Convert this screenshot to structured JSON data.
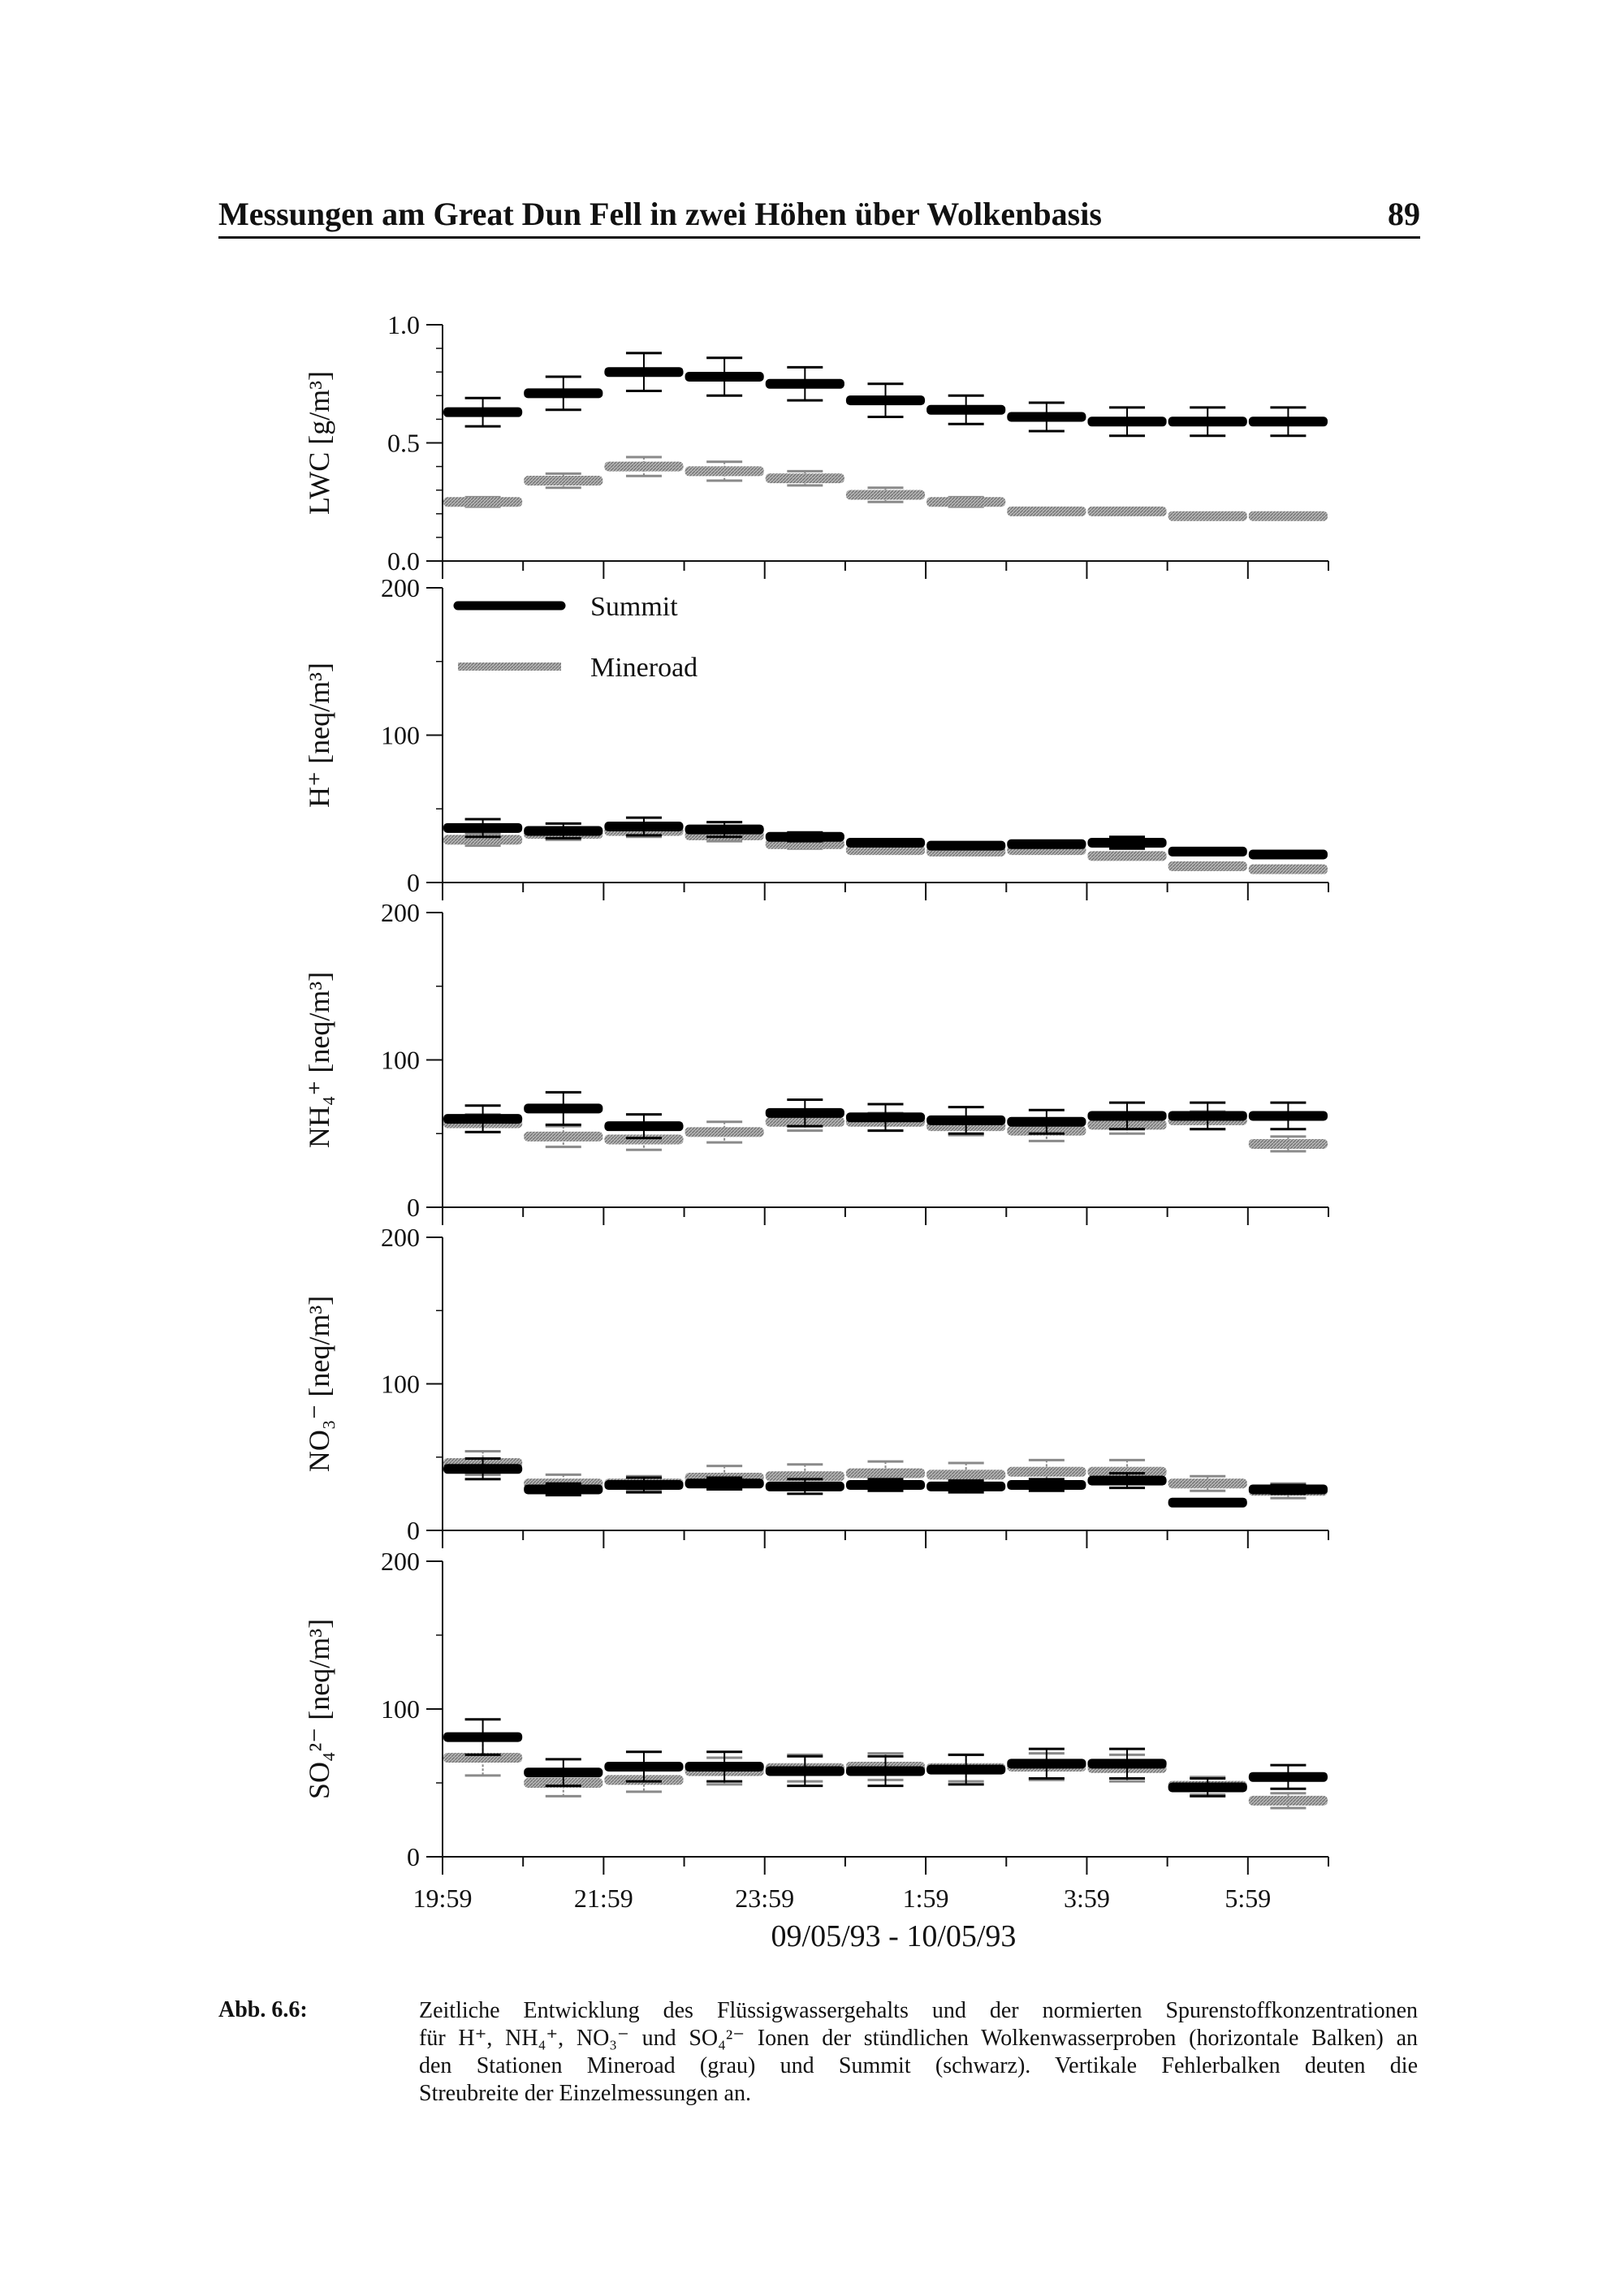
{
  "header": {
    "title": "Messungen am Great Dun Fell in zwei Höhen über Wolkenbasis",
    "page_number": "89"
  },
  "legend": [
    {
      "name": "Summit",
      "color": "#000000"
    },
    {
      "name": "Mineroad",
      "color": "#9a9a9a"
    }
  ],
  "x_axis": {
    "tick_labels": [
      "19:59",
      "21:59",
      "23:59",
      "1:59",
      "3:59",
      "5:59"
    ],
    "tick_hours": [
      0,
      2,
      4,
      6,
      8,
      10
    ],
    "range_hours": [
      0,
      11
    ],
    "label": "09/05/93 - 10/05/93"
  },
  "chart_data": [
    {
      "type": "bar",
      "ylabel": "LWC [g/m³]",
      "ylim": [
        0,
        1.0
      ],
      "yticks": [
        "0.0",
        "0.5",
        "1.0"
      ],
      "ytick_values": [
        0,
        0.5,
        1.0
      ],
      "minor_step": 0.1,
      "series": [
        {
          "name": "Summit",
          "values": [
            0.63,
            0.71,
            0.8,
            0.78,
            0.75,
            0.68,
            0.64,
            0.61,
            0.59,
            0.59,
            0.59
          ],
          "err": [
            0.06,
            0.07,
            0.08,
            0.08,
            0.07,
            0.07,
            0.06,
            0.06,
            0.06,
            0.06,
            0.06
          ]
        },
        {
          "name": "Mineroad",
          "values": [
            0.25,
            0.34,
            0.4,
            0.38,
            0.35,
            0.28,
            0.25,
            0.21,
            0.21,
            0.19,
            0.19
          ],
          "err": [
            0.02,
            0.03,
            0.04,
            0.04,
            0.03,
            0.03,
            0.02,
            0.01,
            0.01,
            0.01,
            0.01
          ]
        }
      ]
    },
    {
      "type": "bar",
      "ylabel": "H⁺ [neq/m³]",
      "ylim": [
        0,
        200
      ],
      "yticks": [
        "0",
        "100",
        "200"
      ],
      "ytick_values": [
        0,
        100,
        200
      ],
      "minor_step": 50,
      "series": [
        {
          "name": "Summit",
          "values": [
            37,
            35,
            38,
            36,
            31,
            27,
            25,
            26,
            27,
            21,
            19
          ],
          "err": [
            6,
            5,
            6,
            5,
            3,
            2,
            1,
            1,
            4,
            1,
            1
          ]
        },
        {
          "name": "Mineroad",
          "values": [
            29,
            33,
            35,
            32,
            26,
            22,
            21,
            22,
            18,
            11,
            9
          ],
          "err": [
            4,
            4,
            4,
            4,
            3,
            2,
            2,
            2,
            2,
            1,
            1
          ]
        }
      ]
    },
    {
      "type": "bar",
      "ylabel": "NH₄⁺ [neq/m³]",
      "ylim": [
        0,
        200
      ],
      "yticks": [
        "0",
        "100",
        "200"
      ],
      "ytick_values": [
        0,
        100,
        200
      ],
      "minor_step": 50,
      "series": [
        {
          "name": "Summit",
          "values": [
            60,
            67,
            55,
            null,
            64,
            61,
            59,
            58,
            62,
            62,
            62
          ],
          "err": [
            9,
            11,
            8,
            0,
            9,
            9,
            9,
            8,
            9,
            9,
            9
          ]
        },
        {
          "name": "Mineroad",
          "values": [
            57,
            48,
            46,
            51,
            58,
            58,
            55,
            52,
            56,
            59,
            43
          ],
          "err": [
            6,
            7,
            7,
            7,
            6,
            6,
            6,
            7,
            6,
            6,
            5
          ]
        }
      ]
    },
    {
      "type": "bar",
      "ylabel": "NO₃⁻ [neq/m³]",
      "ylim": [
        0,
        200
      ],
      "yticks": [
        "0",
        "100",
        "200"
      ],
      "ytick_values": [
        0,
        100,
        200
      ],
      "minor_step": 50,
      "series": [
        {
          "name": "Summit",
          "values": [
            42,
            28,
            31,
            32,
            30,
            31,
            30,
            31,
            34,
            19,
            28
          ],
          "err": [
            7,
            4,
            5,
            4,
            5,
            4,
            4,
            4,
            5,
            0,
            3
          ]
        },
        {
          "name": "Mineroad",
          "values": [
            46,
            32,
            32,
            36,
            37,
            39,
            38,
            40,
            40,
            32,
            27
          ],
          "err": [
            8,
            6,
            5,
            8,
            8,
            8,
            8,
            8,
            8,
            5,
            5
          ]
        }
      ]
    },
    {
      "type": "bar",
      "ylabel": "SO₄²⁻ [neq/m³]",
      "ylim": [
        0,
        200
      ],
      "yticks": [
        "0",
        "100",
        "200"
      ],
      "ytick_values": [
        0,
        100,
        200
      ],
      "minor_step": 50,
      "series": [
        {
          "name": "Summit",
          "values": [
            81,
            57,
            61,
            61,
            58,
            58,
            59,
            63,
            63,
            47,
            54
          ],
          "err": [
            12,
            9,
            10,
            10,
            10,
            10,
            10,
            10,
            10,
            6,
            8
          ]
        },
        {
          "name": "Mineroad",
          "values": [
            67,
            50,
            52,
            58,
            60,
            61,
            60,
            61,
            60,
            48,
            38
          ],
          "err": [
            12,
            9,
            8,
            9,
            9,
            9,
            9,
            9,
            9,
            6,
            5
          ]
        }
      ]
    }
  ],
  "caption": {
    "label": "Abb. 6.6:",
    "lines": [
      "Zeitliche Entwicklung des Flüssigwassergehalts und der normierten Spurenstoffkonzentrationen",
      "für H⁺, NH₄⁺, NO₃⁻ und SO₄²⁻ Ionen der stündlichen Wolkenwasserproben (horizontale Balken) an",
      "den Stationen Mineroad (grau) und Summit (schwarz). Vertikale Fehlerbalken deuten die",
      "Streubreite der Einzelmessungen an."
    ]
  }
}
